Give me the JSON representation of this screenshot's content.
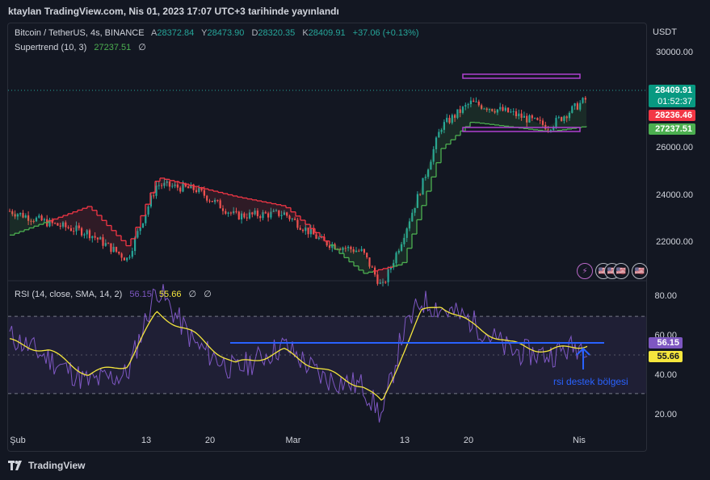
{
  "header": {
    "title": "ktaylan TradingView.com, Nis 01, 2023 17:07 UTC+3 tarihinde yayınlandı"
  },
  "main_legend": {
    "symbol": "Bitcoin / TetherUS, 4s, BINANCE",
    "o_label": "A",
    "o_value": "28372.84",
    "h_label": "Y",
    "h_value": "28473.90",
    "l_label": "D",
    "l_value": "28320.35",
    "c_label": "K",
    "c_value": "28409.91",
    "change": "+37.06 (+0.13%)",
    "indicator": "Supertrend (10, 3)",
    "indicator_value": "27237.51",
    "indicator_extra": "∅"
  },
  "price_axis": {
    "currency": "USDT",
    "ticks": [
      "30000.00",
      "26000.00",
      "24000.00",
      "22000.00"
    ]
  },
  "price_tags": {
    "last_price": "28409.91",
    "countdown": "01:52:37",
    "red_level": "28236.46",
    "supertrend": "27237.51"
  },
  "rsi_legend": {
    "label": "RSI (14, close, SMA, 14, 2)",
    "rsi_value": "56.15",
    "sma_value": "55.66",
    "extra1": "∅",
    "extra2": "∅"
  },
  "rsi_axis": {
    "ticks": [
      "80.00",
      "60.00",
      "40.00",
      "20.00"
    ],
    "rsi_tag": "56.15",
    "sma_tag": "55.66"
  },
  "x_axis": {
    "labels": [
      "Şub",
      "13",
      "20",
      "Mar",
      "13",
      "20",
      "Nis"
    ]
  },
  "annotation": {
    "text": "rsi destek bölgesi"
  },
  "footer": {
    "brand": "TradingView"
  },
  "colors": {
    "background": "#131722",
    "up": "#26a69a",
    "down": "#ef5350",
    "supertrend_up": "#4caf50",
    "supertrend_down": "#f23645",
    "rsi_line": "#7e57c2",
    "rsi_sma": "#f5e63d",
    "range_box": "#9c27b0",
    "support_line": "#2962ff",
    "last_price_tag": "#089981"
  },
  "chart_data": [
    {
      "type": "line",
      "title": "Bitcoin / TetherUS, 4s, BINANCE",
      "series": [
        {
          "name": "Close (approx.)",
          "x": [
            "Şub 01",
            "Şub 05",
            "Şub 09",
            "Şub 13",
            "Şub 16",
            "Şub 20",
            "Şub 24",
            "Mar 01",
            "Mar 05",
            "Mar 09",
            "Mar 11",
            "Mar 13",
            "Mar 15",
            "Mar 17",
            "Mar 20",
            "Mar 24",
            "Mar 28",
            "Nis 01"
          ],
          "values": [
            23700,
            23200,
            22800,
            21700,
            24800,
            24600,
            23500,
            23600,
            22400,
            22000,
            20500,
            22500,
            24700,
            27200,
            28200,
            27800,
            27200,
            28409.91
          ]
        },
        {
          "name": "Supertrend (10, 3)",
          "x": [
            "Şub 01",
            "Şub 09",
            "Şub 13",
            "Şub 16",
            "Şub 24",
            "Mar 01",
            "Mar 09",
            "Mar 13",
            "Mar 17",
            "Mar 20",
            "Mar 28",
            "Nis 01"
          ],
          "values": [
            22700,
            23900,
            22200,
            25100,
            24300,
            23900,
            21100,
            21500,
            26300,
            27400,
            27000,
            27237.51
          ]
        }
      ],
      "ylim": [
        20800,
        30800
      ],
      "yticks": [
        30000,
        26000,
        24000,
        22000
      ],
      "annotations": [
        "range box approx. 27000 – 28700"
      ],
      "grid": false
    },
    {
      "type": "line",
      "title": "RSI (14, close, SMA, 14, 2)",
      "series": [
        {
          "name": "RSI",
          "x": [
            "Şub 01",
            "Şub 05",
            "Şub 09",
            "Şub 13",
            "Şub 16",
            "Şub 20",
            "Şub 24",
            "Mar 01",
            "Mar 05",
            "Mar 09",
            "Mar 11",
            "Mar 13",
            "Mar 15",
            "Mar 17",
            "Mar 20",
            "Mar 24",
            "Mar 28",
            "Nis 01"
          ],
          "values": [
            60,
            48,
            36,
            40,
            85,
            55,
            42,
            55,
            38,
            34,
            18,
            60,
            78,
            74,
            68,
            52,
            50,
            56.15
          ]
        },
        {
          "name": "RSI SMA",
          "x": [
            "Şub 01",
            "Şub 05",
            "Şub 09",
            "Şub 13",
            "Şub 16",
            "Şub 20",
            "Şub 24",
            "Mar 01",
            "Mar 05",
            "Mar 09",
            "Mar 11",
            "Mar 13",
            "Mar 15",
            "Mar 17",
            "Mar 20",
            "Mar 24",
            "Mar 28",
            "Nis 01"
          ],
          "values": [
            57,
            52,
            40,
            45,
            72,
            60,
            45,
            52,
            42,
            34,
            25,
            50,
            72,
            76,
            66,
            56,
            52,
            55.66
          ]
        }
      ],
      "ylim": [
        12,
        88
      ],
      "yticks": [
        80,
        60,
        40,
        20
      ],
      "bands": [
        30,
        50,
        70
      ],
      "annotations": [
        "rsi destek bölgesi",
        "support line at approx. 56"
      ],
      "grid": false
    }
  ]
}
